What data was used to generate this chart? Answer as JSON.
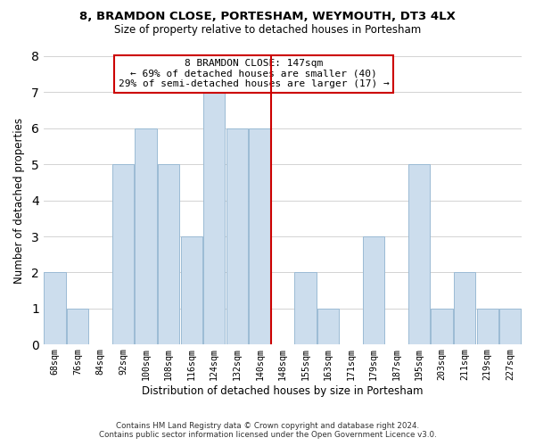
{
  "title": "8, BRAMDON CLOSE, PORTESHAM, WEYMOUTH, DT3 4LX",
  "subtitle": "Size of property relative to detached houses in Portesham",
  "xlabel": "Distribution of detached houses by size in Portesham",
  "ylabel": "Number of detached properties",
  "bar_labels": [
    "68sqm",
    "76sqm",
    "84sqm",
    "92sqm",
    "100sqm",
    "108sqm",
    "116sqm",
    "124sqm",
    "132sqm",
    "140sqm",
    "148sqm",
    "155sqm",
    "163sqm",
    "171sqm",
    "179sqm",
    "187sqm",
    "195sqm",
    "203sqm",
    "211sqm",
    "219sqm",
    "227sqm"
  ],
  "bar_values": [
    2,
    1,
    0,
    5,
    6,
    5,
    3,
    7,
    6,
    6,
    0,
    2,
    1,
    0,
    3,
    0,
    5,
    1,
    2,
    1,
    1
  ],
  "bar_color": "#ccdded",
  "bar_edge_color": "#9bbbd4",
  "vline_color": "#cc0000",
  "ylim": [
    0,
    8
  ],
  "yticks": [
    0,
    1,
    2,
    3,
    4,
    5,
    6,
    7,
    8
  ],
  "annotation_title": "8 BRAMDON CLOSE: 147sqm",
  "annotation_line1": "← 69% of detached houses are smaller (40)",
  "annotation_line2": "29% of semi-detached houses are larger (17) →",
  "annotation_box_color": "#ffffff",
  "annotation_box_edge": "#cc0000",
  "footer1": "Contains HM Land Registry data © Crown copyright and database right 2024.",
  "footer2": "Contains public sector information licensed under the Open Government Licence v3.0."
}
